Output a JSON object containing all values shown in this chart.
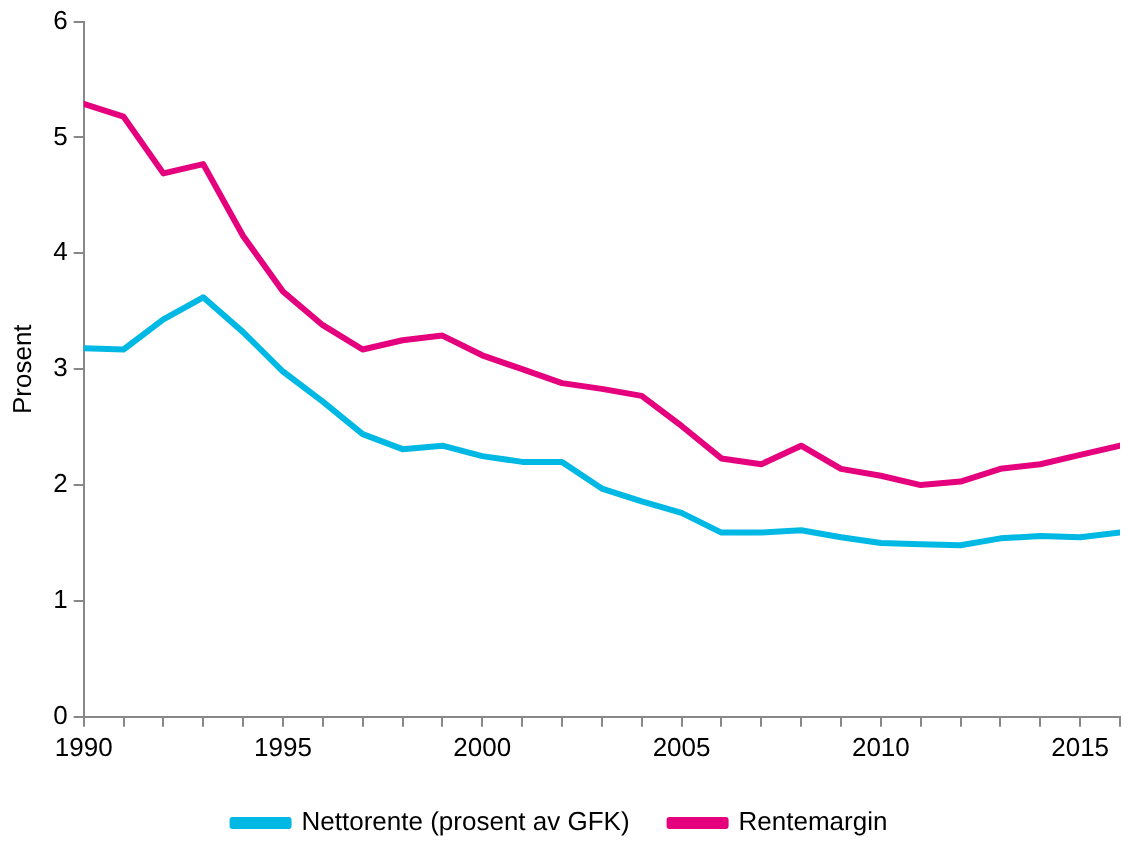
{
  "chart_data": {
    "type": "line",
    "ylabel": "Prosent",
    "x": [
      1990,
      1991,
      1992,
      1993,
      1994,
      1995,
      1996,
      1997,
      1998,
      1999,
      2000,
      2001,
      2002,
      2003,
      2004,
      2005,
      2006,
      2007,
      2008,
      2009,
      2010,
      2011,
      2012,
      2013,
      2014,
      2015,
      2016
    ],
    "series": [
      {
        "name": "Nettorente (prosent av GFK)",
        "color": "#00b8e4",
        "values": [
          3.18,
          3.17,
          3.43,
          3.62,
          3.32,
          2.98,
          2.72,
          2.44,
          2.31,
          2.34,
          2.25,
          2.2,
          2.2,
          1.97,
          1.86,
          1.76,
          1.59,
          1.59,
          1.61,
          1.55,
          1.5,
          1.49,
          1.48,
          1.54,
          1.56,
          1.55,
          1.59
        ]
      },
      {
        "name": "Rentemargin",
        "color": "#e5007d",
        "values": [
          5.29,
          5.18,
          4.69,
          4.77,
          4.15,
          3.67,
          3.38,
          3.17,
          3.25,
          3.29,
          3.12,
          3.0,
          2.88,
          2.83,
          2.77,
          2.51,
          2.23,
          2.18,
          2.34,
          2.14,
          2.08,
          2.0,
          2.03,
          2.14,
          2.18,
          2.26,
          2.34
        ]
      }
    ],
    "xlim": [
      1990,
      2016
    ],
    "xticks": [
      1990,
      {
        "value": 1991,
        "label": null
      },
      {
        "value": 1992,
        "label": null
      },
      {
        "value": 1993,
        "label": null
      },
      {
        "value": 1994,
        "label": null
      },
      1995,
      {
        "value": 1996,
        "label": null
      },
      {
        "value": 1997,
        "label": null
      },
      {
        "value": 1998,
        "label": null
      },
      {
        "value": 1999,
        "label": null
      },
      2000,
      {
        "value": 2001,
        "label": null
      },
      {
        "value": 2002,
        "label": null
      },
      {
        "value": 2003,
        "label": null
      },
      {
        "value": 2004,
        "label": null
      },
      2005,
      {
        "value": 2006,
        "label": null
      },
      {
        "value": 2007,
        "label": null
      },
      {
        "value": 2008,
        "label": null
      },
      {
        "value": 2009,
        "label": null
      },
      2010,
      {
        "value": 2011,
        "label": null
      },
      {
        "value": 2012,
        "label": null
      },
      {
        "value": 2013,
        "label": null
      },
      {
        "value": 2014,
        "label": null
      },
      2015,
      {
        "value": 2016,
        "label": null
      }
    ],
    "ylim": [
      0,
      6
    ],
    "yticks": [
      0,
      1,
      2,
      3,
      4,
      5,
      6
    ],
    "grid": false,
    "legend": "bottom",
    "marker": "none",
    "line_style": "solid"
  }
}
